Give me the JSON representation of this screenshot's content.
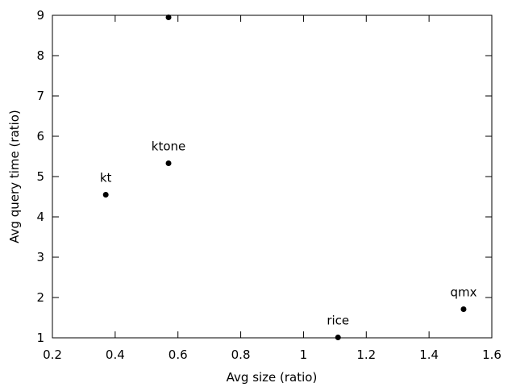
{
  "chart_data": {
    "type": "scatter",
    "title": "",
    "xlabel": "Avg size (ratio)",
    "ylabel": "Avg query time (ratio)",
    "xlim": [
      0.2,
      1.6
    ],
    "ylim": [
      1,
      9
    ],
    "xticks": [
      0.2,
      0.4,
      0.6,
      0.8,
      1,
      1.2,
      1.4,
      1.6
    ],
    "xtick_labels": [
      "0.2",
      "0.4",
      "0.6",
      "0.8",
      "1",
      "1.2",
      "1.4",
      "1.6"
    ],
    "yticks": [
      1,
      2,
      3,
      4,
      5,
      6,
      7,
      8,
      9
    ],
    "ytick_labels": [
      "1",
      "2",
      "3",
      "4",
      "5",
      "6",
      "7",
      "8",
      "9"
    ],
    "grid": false,
    "legend": "none",
    "marker_color": "#000000",
    "points": [
      {
        "label": "",
        "x": 0.57,
        "y": 8.95
      },
      {
        "label": "ktone",
        "x": 0.57,
        "y": 5.33
      },
      {
        "label": "kt",
        "x": 0.37,
        "y": 4.55
      },
      {
        "label": "rice",
        "x": 1.11,
        "y": 1.01
      },
      {
        "label": "qmx",
        "x": 1.51,
        "y": 1.71
      }
    ]
  }
}
